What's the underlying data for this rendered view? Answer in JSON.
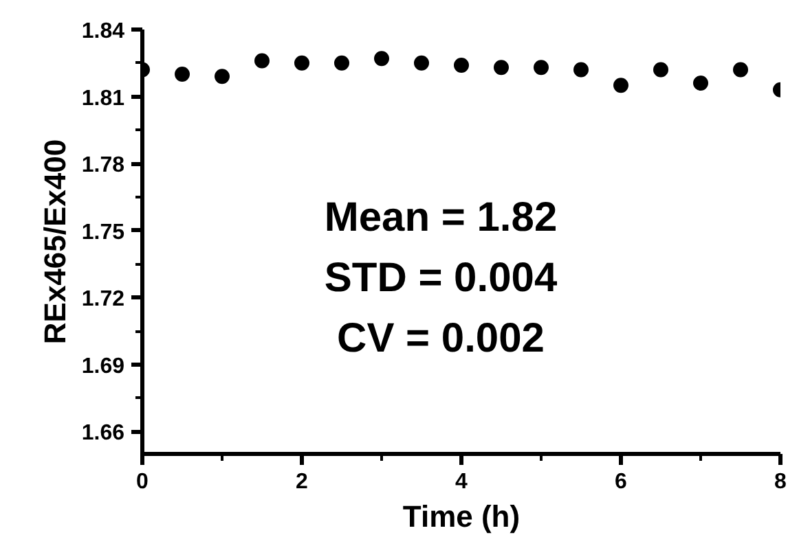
{
  "chart_data": {
    "type": "scatter",
    "xlabel": "Time (h)",
    "ylabel": "REx465/Ex400",
    "x": [
      0,
      0.5,
      1,
      1.5,
      2,
      2.5,
      3,
      3.5,
      4,
      4.5,
      5,
      5.5,
      6,
      6.5,
      7,
      7.5,
      8
    ],
    "series": [
      {
        "color": "#000000",
        "values": [
          1.822,
          1.82,
          1.819,
          1.826,
          1.825,
          1.825,
          1.827,
          1.825,
          1.824,
          1.823,
          1.823,
          1.822,
          1.815,
          1.822,
          1.816,
          1.822,
          1.813
        ]
      }
    ],
    "xlim": [
      0,
      8
    ],
    "xticks": [
      0,
      2,
      4,
      6,
      8
    ],
    "ylim": [
      1.65,
      1.84
    ],
    "yticks": [
      1.66,
      1.69,
      1.72,
      1.75,
      1.78,
      1.81,
      1.84
    ],
    "marker": "circle",
    "grid": false,
    "annotations": [
      "Mean = 1.82",
      "STD = 0.004",
      "CV = 0.002"
    ]
  }
}
